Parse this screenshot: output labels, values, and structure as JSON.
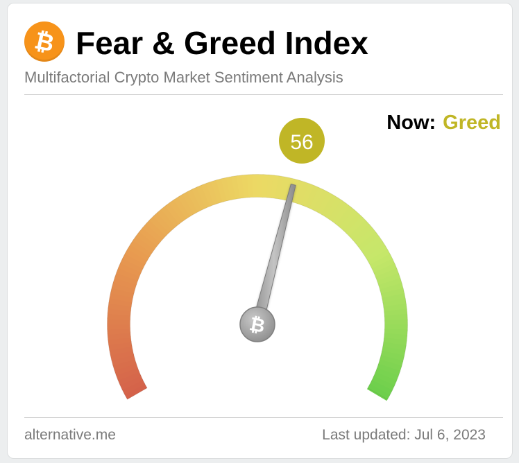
{
  "header": {
    "logo_icon": "bitcoin-icon",
    "title": "Fear & Greed Index",
    "subtitle": "Multifactorial Crypto Market Sentiment Analysis"
  },
  "status": {
    "now_label": "Now:",
    "now_value": "Greed",
    "now_color": "#c0b626"
  },
  "gauge": {
    "value": 56,
    "min": 0,
    "max": 100,
    "value_badge_color": "#c0b626",
    "hub_icon": "bitcoin-icon",
    "gradient_colors": [
      "#d4614a",
      "#e89b50",
      "#ecd964",
      "#c6e76a",
      "#6ccf4b"
    ]
  },
  "footer": {
    "source": "alternative.me",
    "last_updated": "Last updated: Jul 6, 2023"
  }
}
